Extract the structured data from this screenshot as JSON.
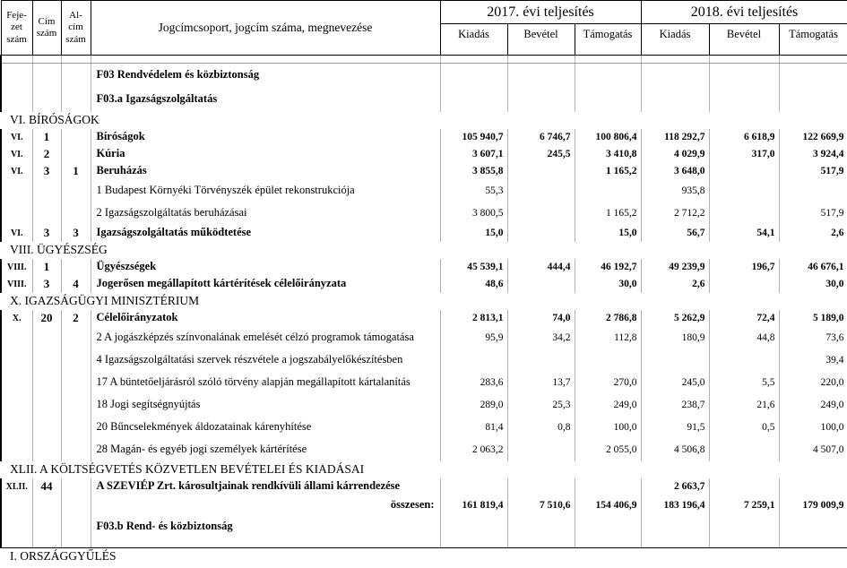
{
  "table": {
    "header": {
      "fejezet": "Feje-zet szám",
      "cim": "Cím szám",
      "alcim": "Al-cím szám",
      "megnevezes": "Jogcímcsoport, jogcím száma, megnevezése",
      "group_2017": "2017. évi teljesítés",
      "group_2018": "2018. évi teljesítés",
      "sub": [
        "Kiadás",
        "Bevétel",
        "Támogatás"
      ]
    },
    "rows": [
      {
        "type": "spacer"
      },
      {
        "type": "group",
        "fejezet": "",
        "cim": "",
        "alcim": "",
        "name": "F03 Rendvédelem és közbiztonság",
        "v": [
          "",
          "",
          "",
          "",
          "",
          ""
        ]
      },
      {
        "type": "group",
        "fejezet": "",
        "cim": "",
        "alcim": "",
        "name": "F03.a Igazságszolgáltatás",
        "v": [
          "",
          "",
          "",
          "",
          "",
          ""
        ]
      },
      {
        "type": "section",
        "name": "VI. BÍRÓSÁGOK"
      },
      {
        "type": "data",
        "fejezet": "VI.",
        "cim": "1",
        "alcim": "",
        "name": "Bíróságok",
        "v": [
          "105 940,7",
          "6 746,7",
          "100 806,4",
          "118 292,7",
          "6 618,9",
          "122 669,9"
        ]
      },
      {
        "type": "data",
        "fejezet": "VI.",
        "cim": "2",
        "alcim": "",
        "name": "Kúria",
        "v": [
          "3 607,1",
          "245,5",
          "3 410,8",
          "4 029,9",
          "317,0",
          "3 924,4"
        ]
      },
      {
        "type": "data",
        "fejezet": "VI.",
        "cim": "3",
        "alcim": "1",
        "name": "Beruházás",
        "v": [
          "3 855,8",
          "",
          "1 165,2",
          "3 648,0",
          "",
          "517,9"
        ]
      },
      {
        "type": "sub",
        "fejezet": "",
        "cim": "",
        "alcim": "",
        "name": "1 Budapest Környéki Törvényszék épület rekonstrukciója",
        "v": [
          "55,3",
          "",
          "",
          "935,8",
          "",
          ""
        ]
      },
      {
        "type": "sub",
        "fejezet": "",
        "cim": "",
        "alcim": "",
        "name": "2 Igazságszolgáltatás beruházásai",
        "v": [
          "3 800,5",
          "",
          "1 165,2",
          "2 712,2",
          "",
          "517,9"
        ]
      },
      {
        "type": "data",
        "fejezet": "VI.",
        "cim": "3",
        "alcim": "3",
        "name": "Igazságszolgáltatás működtetése",
        "v": [
          "15,0",
          "",
          "15,0",
          "56,7",
          "54,1",
          "2,6"
        ]
      },
      {
        "type": "section",
        "name": "VIII. ÜGYÉSZSÉG"
      },
      {
        "type": "data",
        "fejezet": "VIII.",
        "cim": "1",
        "alcim": "",
        "name": "Ügyészségek",
        "v": [
          "45 539,1",
          "444,4",
          "46 192,7",
          "49 239,9",
          "196,7",
          "46 676,1"
        ]
      },
      {
        "type": "data",
        "fejezet": "VIII.",
        "cim": "3",
        "alcim": "4",
        "name": "Jogerősen megállapított kártérítések célelőirányzata",
        "v": [
          "48,6",
          "",
          "30,0",
          "2,6",
          "",
          "30,0"
        ]
      },
      {
        "type": "section",
        "name": "X. IGAZSÁGÜGYI MINISZTÉRIUM"
      },
      {
        "type": "data",
        "fejezet": "X.",
        "cim": "20",
        "alcim": "2",
        "name": "Célelőirányzatok",
        "v": [
          "2 813,1",
          "74,0",
          "2 786,8",
          "5 262,9",
          "72,4",
          "5 189,0"
        ]
      },
      {
        "type": "sub",
        "fejezet": "",
        "cim": "",
        "alcim": "",
        "name": "2 A jogászképzés színvonalának emelését célzó programok támogatása",
        "v": [
          "95,9",
          "34,2",
          "112,8",
          "180,9",
          "44,8",
          "73,6"
        ]
      },
      {
        "type": "sub",
        "fejezet": "",
        "cim": "",
        "alcim": "",
        "name": "4 Igazságszolgáltatási szervek részvétele a jogszabályelőkészítésben",
        "v": [
          "",
          "",
          "",
          "",
          "",
          "39,4"
        ]
      },
      {
        "type": "sub",
        "fejezet": "",
        "cim": "",
        "alcim": "",
        "name": "17 A büntetőeljárásról szóló törvény alapján megállapított kártalanítás",
        "v": [
          "283,6",
          "13,7",
          "270,0",
          "245,0",
          "5,5",
          "220,0"
        ]
      },
      {
        "type": "sub",
        "fejezet": "",
        "cim": "",
        "alcim": "",
        "name": "18 Jogi segítségnyújtás",
        "v": [
          "289,0",
          "25,3",
          "249,0",
          "238,7",
          "21,6",
          "249,0"
        ]
      },
      {
        "type": "sub",
        "fejezet": "",
        "cim": "",
        "alcim": "",
        "name": "20 Bűncselekmények áldozatainak kárenyhítése",
        "v": [
          "81,4",
          "0,8",
          "100,0",
          "91,5",
          "0,5",
          "100,0"
        ]
      },
      {
        "type": "sub",
        "fejezet": "",
        "cim": "",
        "alcim": "",
        "name": "28 Magán- és egyéb jogi személyek kártérítése",
        "v": [
          "2 063,2",
          "",
          "2 055,0",
          "4 506,8",
          "",
          "4 507,0"
        ]
      },
      {
        "type": "section",
        "name": "XLII. A KÖLTSÉGVETÉS KÖZVETLEN BEVÉTELEI ÉS KIADÁSAI"
      },
      {
        "type": "data",
        "fejezet": "XLII.",
        "cim": "44",
        "alcim": "",
        "name": "A SZEVIÉP Zrt. károsultjainak rendkívüli állami kárrendezése",
        "v": [
          "",
          "",
          "",
          "2 663,7",
          "",
          ""
        ]
      },
      {
        "type": "total",
        "fejezet": "",
        "cim": "",
        "alcim": "",
        "name": "összesen:",
        "v": [
          "161 819,4",
          "7 510,6",
          "154 406,9",
          "183 196,4",
          "7 259,1",
          "179 009,9"
        ]
      },
      {
        "type": "group",
        "fejezet": "",
        "cim": "",
        "alcim": "",
        "name": "F03.b Rend- és közbiztonság",
        "v": [
          "",
          "",
          "",
          "",
          "",
          ""
        ]
      },
      {
        "type": "spacer2"
      },
      {
        "type": "rule"
      },
      {
        "type": "section",
        "name": "I. ORSZÁGGYŰLÉS"
      }
    ]
  }
}
